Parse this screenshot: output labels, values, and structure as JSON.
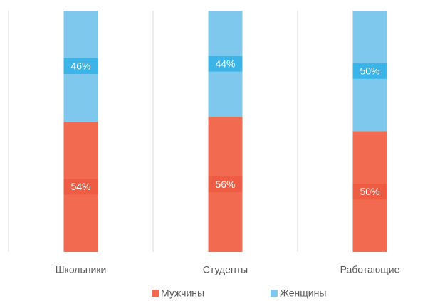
{
  "chart_data": {
    "type": "stacked_bar",
    "categories": [
      "Школьники",
      "Студенты",
      "Работающие"
    ],
    "series": [
      {
        "name": "Мужчины",
        "color": "#f26b50",
        "label_bg": "#ee5d43",
        "values": [
          54,
          56,
          50
        ],
        "value_labels": [
          "54%",
          "56%",
          "50%"
        ]
      },
      {
        "name": "Женщины",
        "color": "#7ec8ee",
        "label_bg": "#3cb4e7",
        "values": [
          46,
          44,
          50
        ],
        "value_labels": [
          "46%",
          "44%",
          "50%"
        ]
      }
    ],
    "ylim": [
      0,
      100
    ]
  }
}
